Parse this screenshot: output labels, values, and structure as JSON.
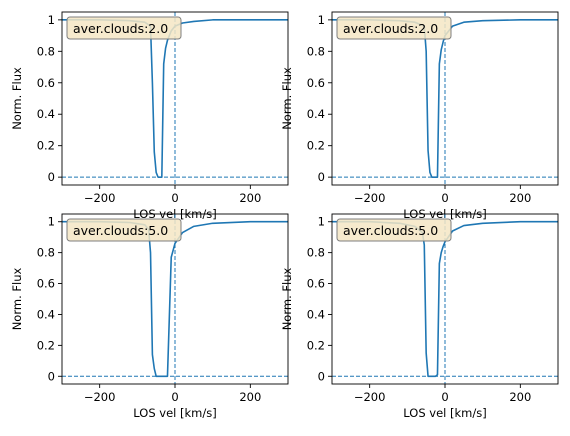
{
  "chart_data": [
    {
      "type": "line",
      "annotation": "aver.clouds:2.0",
      "xlabel": "LOS vel [km/s]",
      "ylabel": "Norm. Flux",
      "xlim": [
        -300,
        300
      ],
      "ylim": [
        -0.05,
        1.05
      ],
      "xticks": [
        -200,
        0,
        200
      ],
      "yticks": [
        0.0,
        0.2,
        0.4,
        0.6,
        0.8,
        1.0
      ],
      "grid": false,
      "reference_lines": {
        "vertical_x": 0,
        "horizontal_y": 0
      },
      "color": "#1f77b4",
      "series": [
        {
          "x": [
            -300,
            -200,
            -120,
            -80,
            -65,
            -60,
            -55,
            -50,
            -45,
            -40,
            -35,
            -30,
            -25,
            -20,
            -10,
            0,
            20,
            50,
            100,
            200,
            300
          ],
          "y": [
            1.0,
            1.0,
            0.995,
            0.985,
            0.96,
            0.6,
            0.16,
            0.03,
            0.0,
            0.0,
            0.0,
            0.72,
            0.82,
            0.87,
            0.93,
            0.96,
            0.98,
            0.99,
            1.0,
            1.0,
            1.0
          ]
        }
      ]
    },
    {
      "type": "line",
      "annotation": "aver.clouds:2.0",
      "xlabel": "LOS vel [km/s]",
      "ylabel": "Norm. Flux",
      "xlim": [
        -300,
        300
      ],
      "ylim": [
        -0.05,
        1.05
      ],
      "xticks": [
        -200,
        0,
        200
      ],
      "yticks": [
        0.0,
        0.2,
        0.4,
        0.6,
        0.8,
        1.0
      ],
      "grid": false,
      "reference_lines": {
        "vertical_x": 0,
        "horizontal_y": 0
      },
      "color": "#1f77b4",
      "series": [
        {
          "x": [
            -300,
            -200,
            -120,
            -80,
            -55,
            -50,
            -45,
            -40,
            -35,
            -30,
            -25,
            -20,
            -15,
            -10,
            -5,
            0,
            20,
            50,
            100,
            200,
            300
          ],
          "y": [
            1.0,
            1.0,
            0.995,
            0.985,
            0.96,
            0.8,
            0.17,
            0.03,
            0.0,
            0.0,
            0.0,
            0.0,
            0.72,
            0.81,
            0.86,
            0.9,
            0.96,
            0.985,
            0.995,
            1.0,
            1.0
          ]
        }
      ]
    },
    {
      "type": "line",
      "annotation": "aver.clouds:5.0",
      "xlabel": "LOS vel [km/s]",
      "ylabel": "Norm. Flux",
      "xlim": [
        -300,
        300
      ],
      "ylim": [
        -0.05,
        1.05
      ],
      "xticks": [
        -200,
        0,
        200
      ],
      "yticks": [
        0.0,
        0.2,
        0.4,
        0.6,
        0.8,
        1.0
      ],
      "grid": false,
      "reference_lines": {
        "vertical_x": 0,
        "horizontal_y": 0
      },
      "color": "#1f77b4",
      "series": [
        {
          "x": [
            -300,
            -200,
            -120,
            -80,
            -70,
            -65,
            -60,
            -55,
            -50,
            -45,
            -40,
            -35,
            -30,
            -25,
            -20,
            -10,
            0,
            20,
            50,
            100,
            200,
            300
          ],
          "y": [
            1.0,
            1.0,
            0.995,
            0.98,
            0.95,
            0.8,
            0.14,
            0.05,
            0.0,
            0.0,
            0.0,
            0.0,
            0.0,
            0.0,
            0.0,
            0.77,
            0.86,
            0.93,
            0.97,
            0.99,
            1.0,
            1.0
          ]
        }
      ]
    },
    {
      "type": "line",
      "annotation": "aver.clouds:5.0",
      "xlabel": "LOS vel [km/s]",
      "ylabel": "Norm. Flux",
      "xlim": [
        -300,
        300
      ],
      "ylim": [
        -0.05,
        1.05
      ],
      "xticks": [
        -200,
        0,
        200
      ],
      "yticks": [
        0.0,
        0.2,
        0.4,
        0.6,
        0.8,
        1.0
      ],
      "grid": false,
      "reference_lines": {
        "vertical_x": 0,
        "horizontal_y": 0
      },
      "color": "#1f77b4",
      "series": [
        {
          "x": [
            -300,
            -200,
            -120,
            -80,
            -60,
            -55,
            -50,
            -45,
            -40,
            -35,
            -30,
            -25,
            -20,
            -15,
            -10,
            -5,
            0,
            20,
            50,
            100,
            200,
            300
          ],
          "y": [
            1.0,
            1.0,
            0.99,
            0.97,
            0.93,
            0.85,
            0.15,
            0.0,
            0.0,
            0.0,
            0.0,
            0.0,
            0.01,
            0.73,
            0.8,
            0.84,
            0.87,
            0.94,
            0.975,
            0.99,
            1.0,
            1.0
          ]
        }
      ]
    }
  ]
}
